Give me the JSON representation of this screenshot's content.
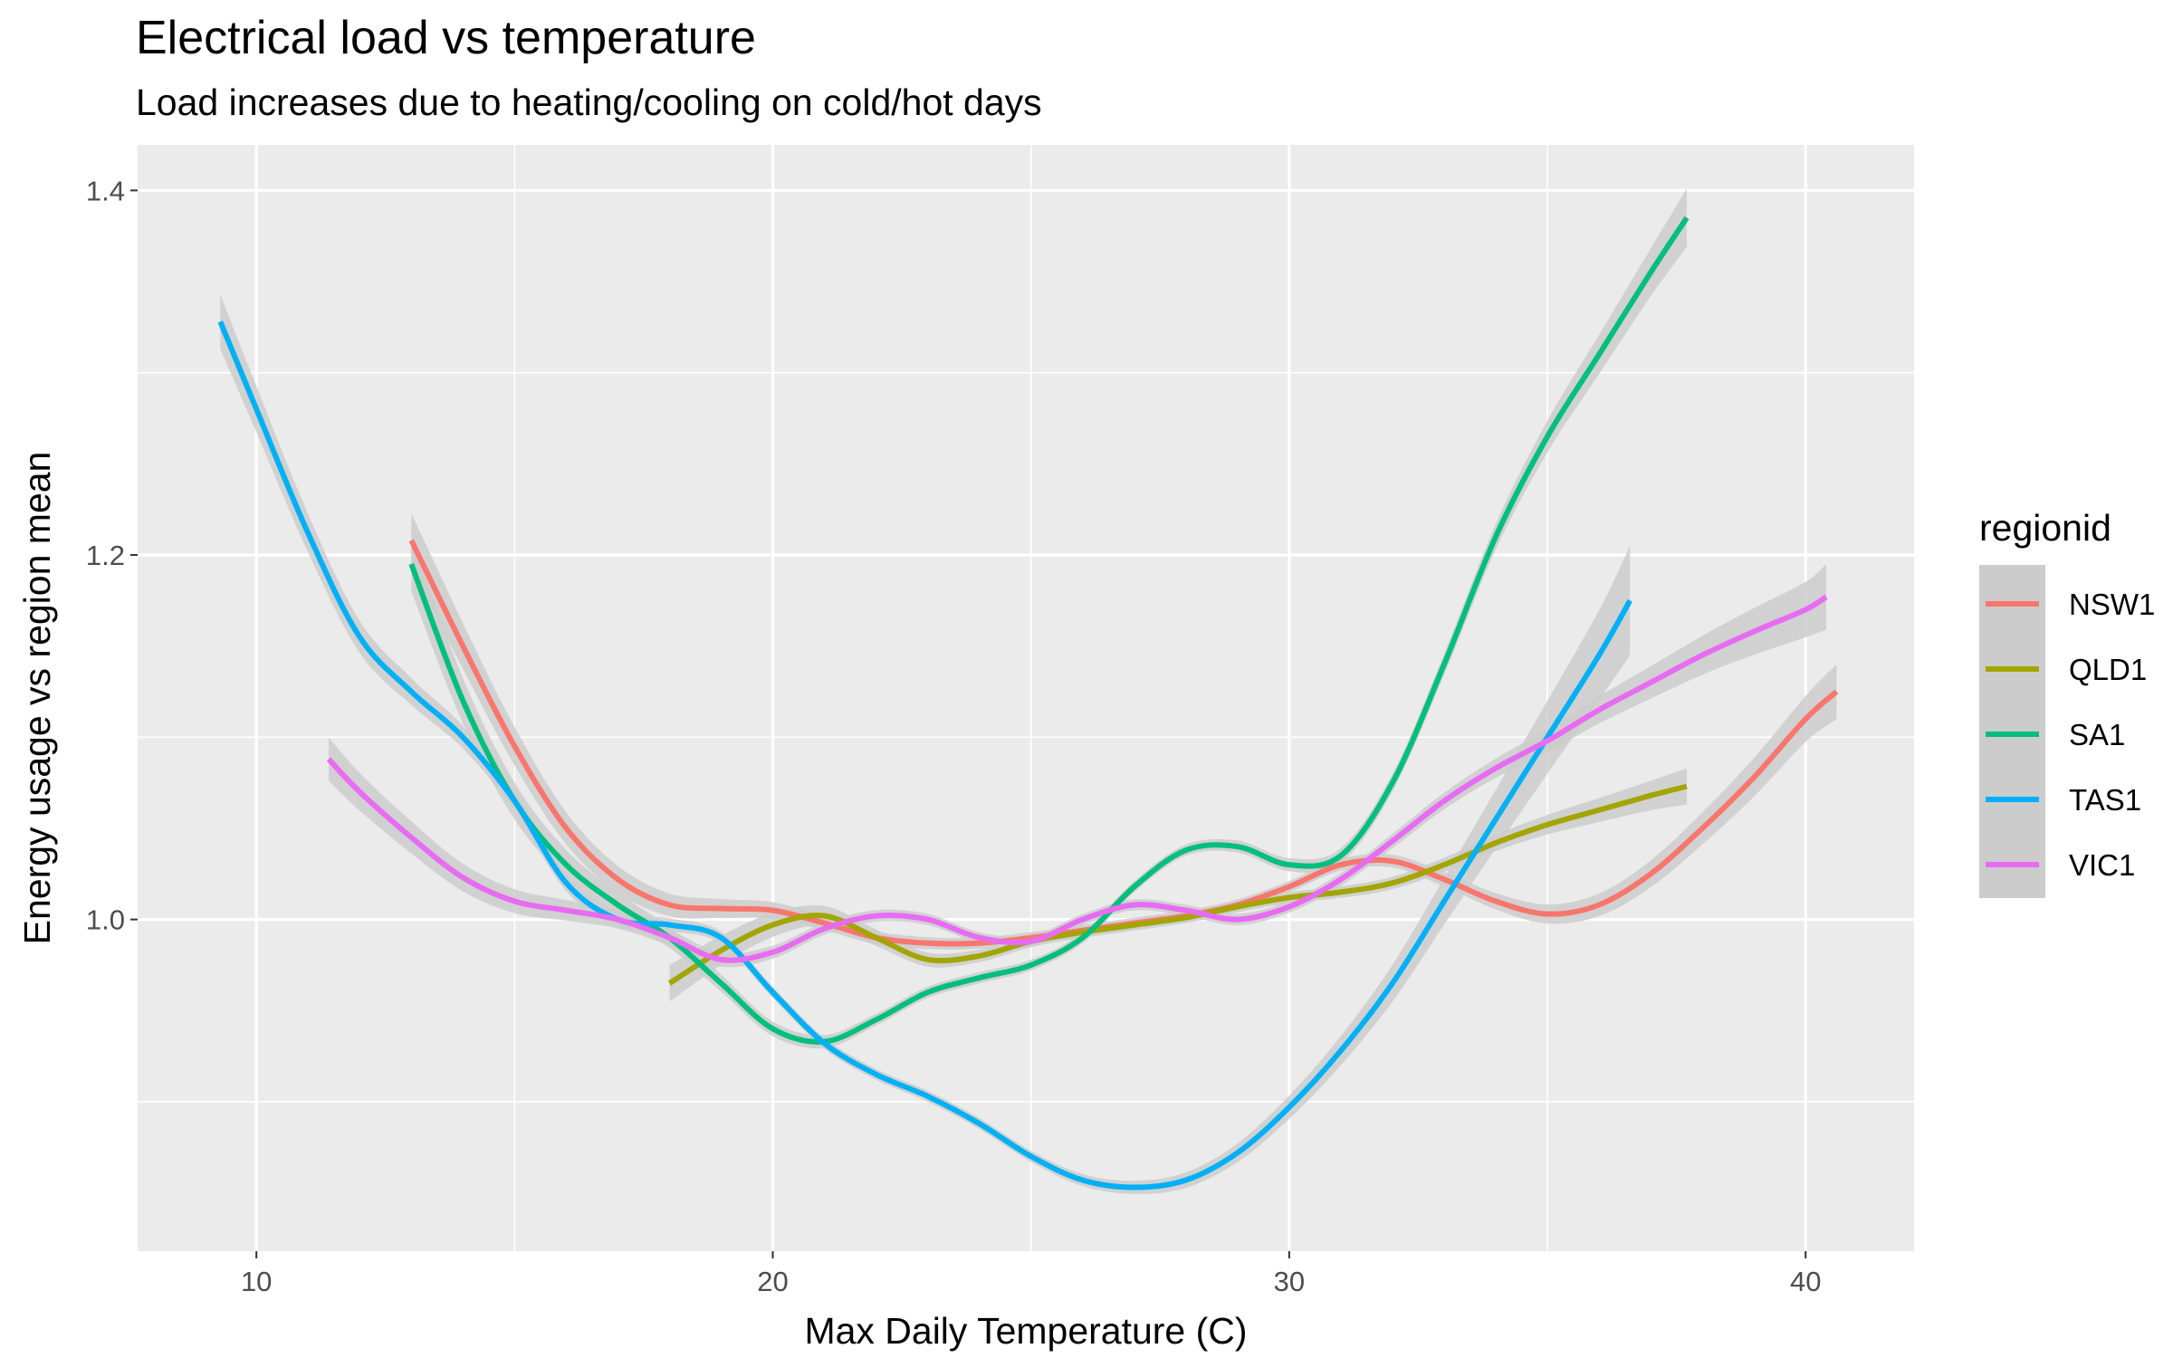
{
  "chart_data": {
    "type": "line",
    "title": "Electrical load vs temperature",
    "subtitle": "Load increases due to heating/cooling on cold/hot days",
    "xlabel": "Max Daily Temperature (C)",
    "ylabel": "Energy usage vs region mean",
    "xlim": [
      7.7,
      42.1
    ],
    "ylim": [
      0.818,
      1.425
    ],
    "x_ticks": [
      10,
      20,
      30,
      40
    ],
    "x_minor": [
      15,
      25,
      35
    ],
    "y_ticks": [
      1.0,
      1.2,
      1.4
    ],
    "y_tick_labels": [
      "1.0",
      "1.2",
      "1.4"
    ],
    "y_minor": [
      0.9,
      1.1,
      1.3
    ],
    "grid": true,
    "background": "#ebebeb",
    "confidence_band_color": "#cccccc",
    "legend": {
      "title": "regionid",
      "position": "right"
    },
    "series": [
      {
        "name": "NSW1",
        "color": "#F8766D",
        "points": [
          [
            13,
            1.208
          ],
          [
            14,
            1.15
          ],
          [
            15,
            1.095
          ],
          [
            16,
            1.05
          ],
          [
            17,
            1.022
          ],
          [
            18,
            1.008
          ],
          [
            19,
            1.006
          ],
          [
            20,
            1.005
          ],
          [
            21,
            0.998
          ],
          [
            22,
            0.99
          ],
          [
            23,
            0.987
          ],
          [
            24,
            0.987
          ],
          [
            25,
            0.99
          ],
          [
            26,
            0.994
          ],
          [
            27,
            0.998
          ],
          [
            28,
            1.002
          ],
          [
            29,
            1.008
          ],
          [
            30,
            1.018
          ],
          [
            31,
            1.03
          ],
          [
            32,
            1.032
          ],
          [
            33,
            1.022
          ],
          [
            34,
            1.01
          ],
          [
            35,
            1.003
          ],
          [
            36,
            1.008
          ],
          [
            37,
            1.025
          ],
          [
            38,
            1.05
          ],
          [
            39,
            1.078
          ],
          [
            40,
            1.11
          ],
          [
            40.6,
            1.125
          ]
        ],
        "band": [
          0.015,
          0.003,
          0.003,
          0.015
        ]
      },
      {
        "name": "QLD1",
        "color": "#A3A500",
        "points": [
          [
            18,
            0.965
          ],
          [
            19,
            0.983
          ],
          [
            20,
            0.997
          ],
          [
            21,
            1.002
          ],
          [
            22,
            0.99
          ],
          [
            23,
            0.978
          ],
          [
            24,
            0.98
          ],
          [
            25,
            0.988
          ],
          [
            26,
            0.993
          ],
          [
            27,
            0.997
          ],
          [
            28,
            1.001
          ],
          [
            29,
            1.007
          ],
          [
            30,
            1.012
          ],
          [
            31,
            1.015
          ],
          [
            32,
            1.02
          ],
          [
            33,
            1.03
          ],
          [
            34,
            1.042
          ],
          [
            35,
            1.052
          ],
          [
            36,
            1.06
          ],
          [
            37,
            1.068
          ],
          [
            37.7,
            1.073
          ]
        ],
        "band": [
          0.01,
          0.003,
          0.003,
          0.01
        ]
      },
      {
        "name": "SA1",
        "color": "#00BF7D",
        "points": [
          [
            13,
            1.195
          ],
          [
            14,
            1.12
          ],
          [
            15,
            1.065
          ],
          [
            16,
            1.03
          ],
          [
            17,
            1.008
          ],
          [
            18,
            0.99
          ],
          [
            19,
            0.965
          ],
          [
            20,
            0.94
          ],
          [
            21,
            0.933
          ],
          [
            22,
            0.945
          ],
          [
            23,
            0.96
          ],
          [
            24,
            0.968
          ],
          [
            25,
            0.975
          ],
          [
            26,
            0.99
          ],
          [
            27,
            1.018
          ],
          [
            28,
            1.038
          ],
          [
            29,
            1.04
          ],
          [
            30,
            1.03
          ],
          [
            31,
            1.035
          ],
          [
            32,
            1.075
          ],
          [
            33,
            1.14
          ],
          [
            34,
            1.21
          ],
          [
            35,
            1.265
          ],
          [
            36,
            1.31
          ],
          [
            37,
            1.355
          ],
          [
            37.7,
            1.385
          ]
        ],
        "band": [
          0.015,
          0.003,
          0.003,
          0.016
        ]
      },
      {
        "name": "TAS1",
        "color": "#00B0F6",
        "points": [
          [
            9.3,
            1.328
          ],
          [
            10,
            1.28
          ],
          [
            11,
            1.212
          ],
          [
            12,
            1.155
          ],
          [
            13,
            1.125
          ],
          [
            14,
            1.1
          ],
          [
            15,
            1.065
          ],
          [
            16,
            1.02
          ],
          [
            17,
            1.0
          ],
          [
            18,
            0.997
          ],
          [
            19,
            0.99
          ],
          [
            20,
            0.96
          ],
          [
            21,
            0.932
          ],
          [
            22,
            0.915
          ],
          [
            23,
            0.903
          ],
          [
            24,
            0.888
          ],
          [
            25,
            0.87
          ],
          [
            26,
            0.857
          ],
          [
            27,
            0.853
          ],
          [
            28,
            0.857
          ],
          [
            29,
            0.872
          ],
          [
            30,
            0.897
          ],
          [
            31,
            0.928
          ],
          [
            32,
            0.965
          ],
          [
            33,
            1.01
          ],
          [
            34,
            1.055
          ],
          [
            35,
            1.1
          ],
          [
            36,
            1.145
          ],
          [
            36.6,
            1.175
          ]
        ],
        "band": [
          0.015,
          0.003,
          0.003,
          0.03
        ]
      },
      {
        "name": "VIC1",
        "color": "#E76BF3",
        "points": [
          [
            11.4,
            1.088
          ],
          [
            12,
            1.07
          ],
          [
            13,
            1.045
          ],
          [
            14,
            1.023
          ],
          [
            15,
            1.01
          ],
          [
            16,
            1.005
          ],
          [
            17,
            1.0
          ],
          [
            18,
            0.99
          ],
          [
            19,
            0.978
          ],
          [
            20,
            0.982
          ],
          [
            21,
            0.995
          ],
          [
            22,
            1.002
          ],
          [
            23,
            1.0
          ],
          [
            24,
            0.99
          ],
          [
            25,
            0.988
          ],
          [
            26,
            1.0
          ],
          [
            27,
            1.008
          ],
          [
            28,
            1.005
          ],
          [
            29,
            1.0
          ],
          [
            30,
            1.007
          ],
          [
            31,
            1.022
          ],
          [
            32,
            1.043
          ],
          [
            33,
            1.065
          ],
          [
            34,
            1.083
          ],
          [
            35,
            1.098
          ],
          [
            36,
            1.115
          ],
          [
            37,
            1.13
          ],
          [
            38,
            1.145
          ],
          [
            39,
            1.158
          ],
          [
            40,
            1.17
          ],
          [
            40.4,
            1.177
          ]
        ],
        "band": [
          0.012,
          0.003,
          0.003,
          0.018
        ]
      }
    ]
  }
}
